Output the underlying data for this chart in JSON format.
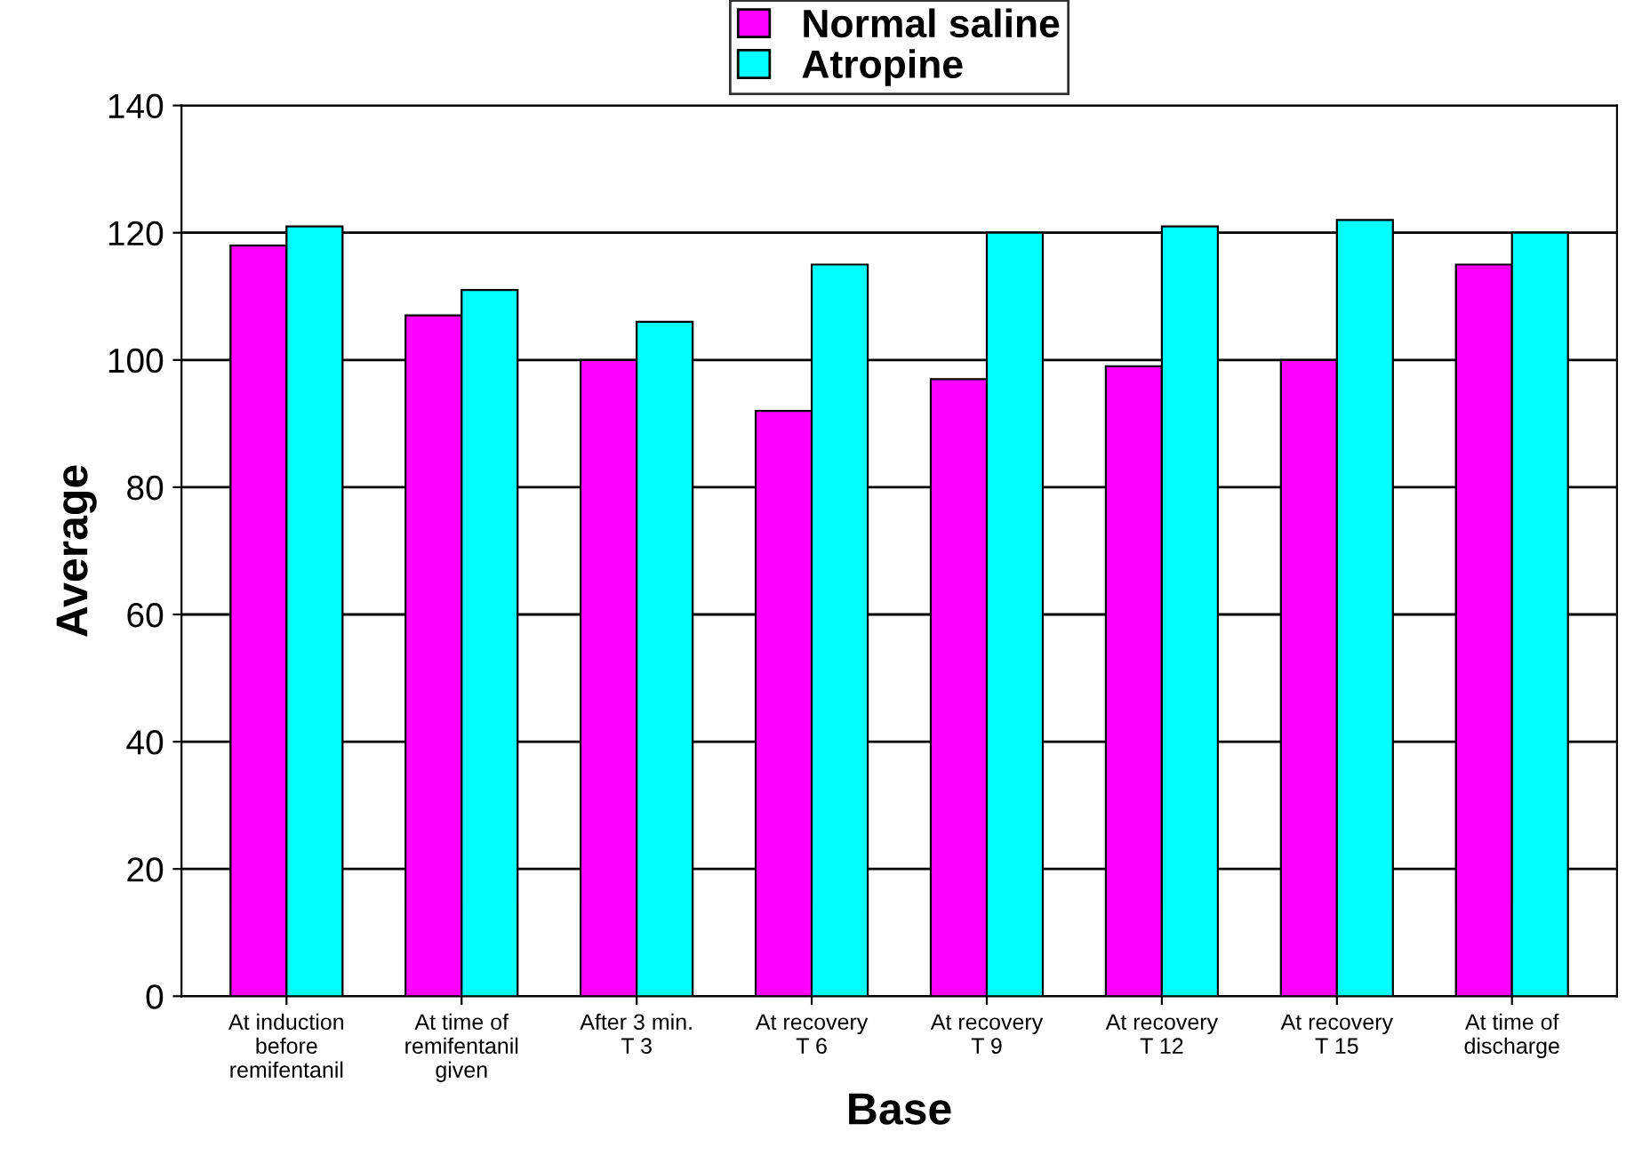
{
  "chart_data": {
    "type": "bar",
    "xlabel": "Base",
    "ylabel": "Average",
    "categories": [
      "At induction\nbefore\nremifentanil",
      "At time of\nremifentanil\ngiven",
      "After 3 min.\nT 3",
      "At recovery\nT 6",
      "At recovery\nT 9",
      "At recovery\nT 12",
      "At recovery\nT 15",
      "At time of\ndischarge"
    ],
    "series": [
      {
        "name": "Normal saline",
        "color": "#ff00ff",
        "values": [
          118,
          107,
          100,
          92,
          97,
          99,
          100,
          115
        ]
      },
      {
        "name": "Atropine",
        "color": "#00ffff",
        "values": [
          121,
          111,
          106,
          115,
          120,
          121,
          122,
          120
        ]
      }
    ],
    "ylim": [
      0,
      140
    ],
    "yticks": [
      0,
      20,
      40,
      60,
      80,
      100,
      120,
      140
    ],
    "grid": "y",
    "legend": "top"
  }
}
